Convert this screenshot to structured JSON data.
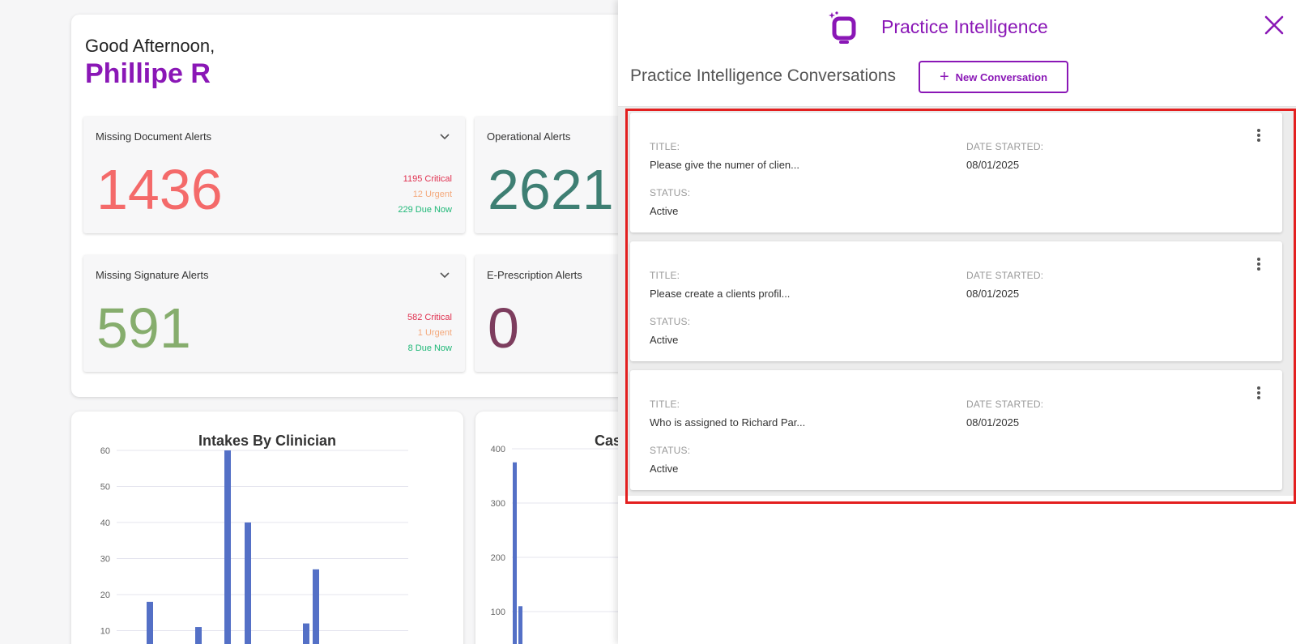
{
  "greeting": {
    "line": "Good Afternoon,",
    "name": "Phillipe R"
  },
  "alerts": [
    {
      "title": "Missing Document Alerts",
      "value": "1436",
      "color": "#f46a6a",
      "critical": "1195 Critical",
      "urgent": "12 Urgent",
      "due": "229 Due Now"
    },
    {
      "title": "Operational Alerts",
      "value": "2621",
      "color": "#3e7f73"
    },
    {
      "title": "Missing Signature Alerts",
      "value": "591",
      "color": "#86ad6d",
      "critical": "582 Critical",
      "urgent": "1 Urgent",
      "due": "8 Due Now"
    },
    {
      "title": "E-Prescription Alerts",
      "value": "0",
      "color": "#7d3d5e"
    }
  ],
  "alert_colors": {
    "critical": "#e0304f",
    "urgent": "#f4a97c",
    "due": "#1fb877"
  },
  "chart_data": [
    {
      "type": "bar",
      "title": "Intakes By Clinician",
      "ylim": [
        0,
        60
      ],
      "y_ticks": [
        "60",
        "50",
        "40",
        "30",
        "20",
        "10"
      ],
      "values": [
        18,
        11,
        60,
        40,
        12,
        27
      ],
      "bar_color": "#5470c6"
    },
    {
      "type": "bar",
      "title": "Cas",
      "ylim": [
        0,
        400
      ],
      "y_ticks": [
        "400",
        "300",
        "200",
        "100"
      ],
      "values": [
        375,
        110
      ],
      "bar_color": "#5470c6"
    }
  ],
  "drawer": {
    "title": "Practice Intelligence",
    "conversations_heading": "Practice Intelligence Conversations",
    "new_conversation_label": "New Conversation",
    "labels": {
      "title": "TITLE:",
      "date": "DATE STARTED:",
      "status": "STATUS:"
    },
    "conversations": [
      {
        "title": "Please give the numer of clien...",
        "date": "08/01/2025",
        "status": "Active"
      },
      {
        "title": "Please create a clients profil...",
        "date": "08/01/2025",
        "status": "Active"
      },
      {
        "title": "Who is assigned to Richard Par...",
        "date": "08/01/2025",
        "status": "Active"
      }
    ]
  },
  "colors": {
    "accent": "#8a17b6",
    "highlight": "#e31f1f"
  },
  "icons": {
    "logo": "practice-intelligence-logo-icon",
    "close": "close-icon",
    "plus": "plus-icon",
    "more": "kebab-menu-icon",
    "chevron": "chevron-down-icon"
  }
}
